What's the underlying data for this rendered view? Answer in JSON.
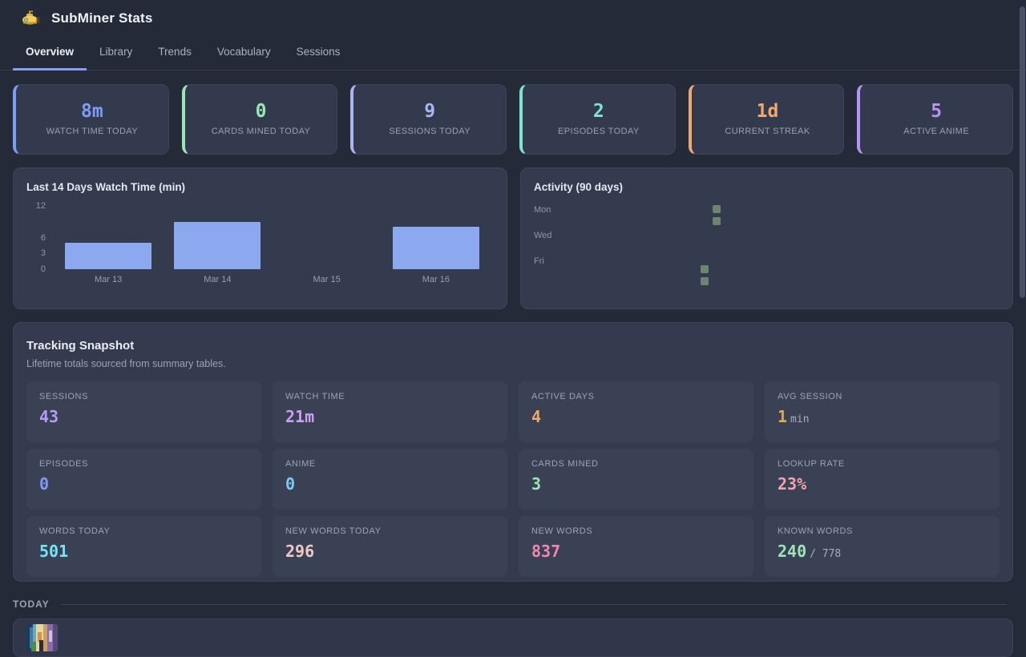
{
  "app": {
    "title": "SubMiner Stats",
    "logo_icon": "submarine-icon"
  },
  "tabs": [
    {
      "label": "Overview",
      "active": true
    },
    {
      "label": "Library",
      "active": false
    },
    {
      "label": "Trends",
      "active": false
    },
    {
      "label": "Vocabulary",
      "active": false
    },
    {
      "label": "Sessions",
      "active": false
    }
  ],
  "stat_cards": [
    {
      "value": "8m",
      "label": "WATCH TIME TODAY",
      "color": "#7f9cf5"
    },
    {
      "value": "0",
      "label": "CARDS MINED TODAY",
      "color": "#9ae6b4"
    },
    {
      "value": "9",
      "label": "SESSIONS TODAY",
      "color": "#a9b6f2"
    },
    {
      "value": "2",
      "label": "EPISODES TODAY",
      "color": "#7fe3d2"
    },
    {
      "value": "1d",
      "label": "CURRENT STREAK",
      "color": "#f0a873"
    },
    {
      "value": "5",
      "label": "ACTIVE ANIME",
      "color": "#b794f4"
    }
  ],
  "chart_data": [
    {
      "type": "bar",
      "title": "Last 14 Days Watch Time (min)",
      "categories": [
        "Mar 13",
        "Mar 14",
        "Mar 15",
        "Mar 16"
      ],
      "values": [
        5,
        9,
        0,
        8
      ],
      "yticks": [
        12,
        6,
        3,
        0
      ],
      "ylim": [
        0,
        12
      ],
      "xlabel": "",
      "ylabel": "",
      "grid": false,
      "legend": false,
      "bar_color": "#8ca9f0"
    },
    {
      "type": "heatmap",
      "title": "Activity (90 days)",
      "day_labels": [
        "Mon",
        "Wed",
        "Fri"
      ],
      "active_color": "#6d8570",
      "cells": [
        {
          "col": 12,
          "row": 1
        },
        {
          "col": 12,
          "row": 2
        },
        {
          "col": 11,
          "row": 6
        },
        {
          "col": 11,
          "row": 7
        }
      ]
    }
  ],
  "tracking": {
    "title": "Tracking Snapshot",
    "subtitle": "Lifetime totals sourced from summary tables.",
    "cells": [
      {
        "label": "SESSIONS",
        "value": "43",
        "suffix": "",
        "color": "#b49df2"
      },
      {
        "label": "WATCH TIME",
        "value": "21m",
        "suffix": "",
        "color": "#c9a0f2"
      },
      {
        "label": "ACTIVE DAYS",
        "value": "4",
        "suffix": "",
        "color": "#f0a873"
      },
      {
        "label": "AVG SESSION",
        "value": "1",
        "suffix": "min",
        "color": "#d6ad55"
      },
      {
        "label": "EPISODES",
        "value": "0",
        "suffix": "",
        "color": "#7f9cf5"
      },
      {
        "label": "ANIME",
        "value": "0",
        "suffix": "",
        "color": "#7ec8f5"
      },
      {
        "label": "CARDS MINED",
        "value": "3",
        "suffix": "",
        "color": "#9ae6b4"
      },
      {
        "label": "LOOKUP RATE",
        "value": "23%",
        "suffix": "",
        "color": "#f0a4ad"
      },
      {
        "label": "WORDS TODAY",
        "value": "501",
        "suffix": "",
        "color": "#76e4f7"
      },
      {
        "label": "NEW WORDS TODAY",
        "value": "296",
        "suffix": "",
        "color": "#f0c8c4"
      },
      {
        "label": "NEW WORDS",
        "value": "837",
        "suffix": "",
        "color": "#f287b3"
      },
      {
        "label": "KNOWN WORDS",
        "value": "240",
        "suffix": "/ 778",
        "color": "#9ae6b4"
      }
    ]
  },
  "today": {
    "label": "TODAY"
  },
  "theme": {
    "page_bg": "#252a39",
    "panel_bg": "#353b4e",
    "cell_bg": "#3a4155",
    "tab_underline": "#8b9cf0",
    "label_gray": "#98a1b3"
  }
}
